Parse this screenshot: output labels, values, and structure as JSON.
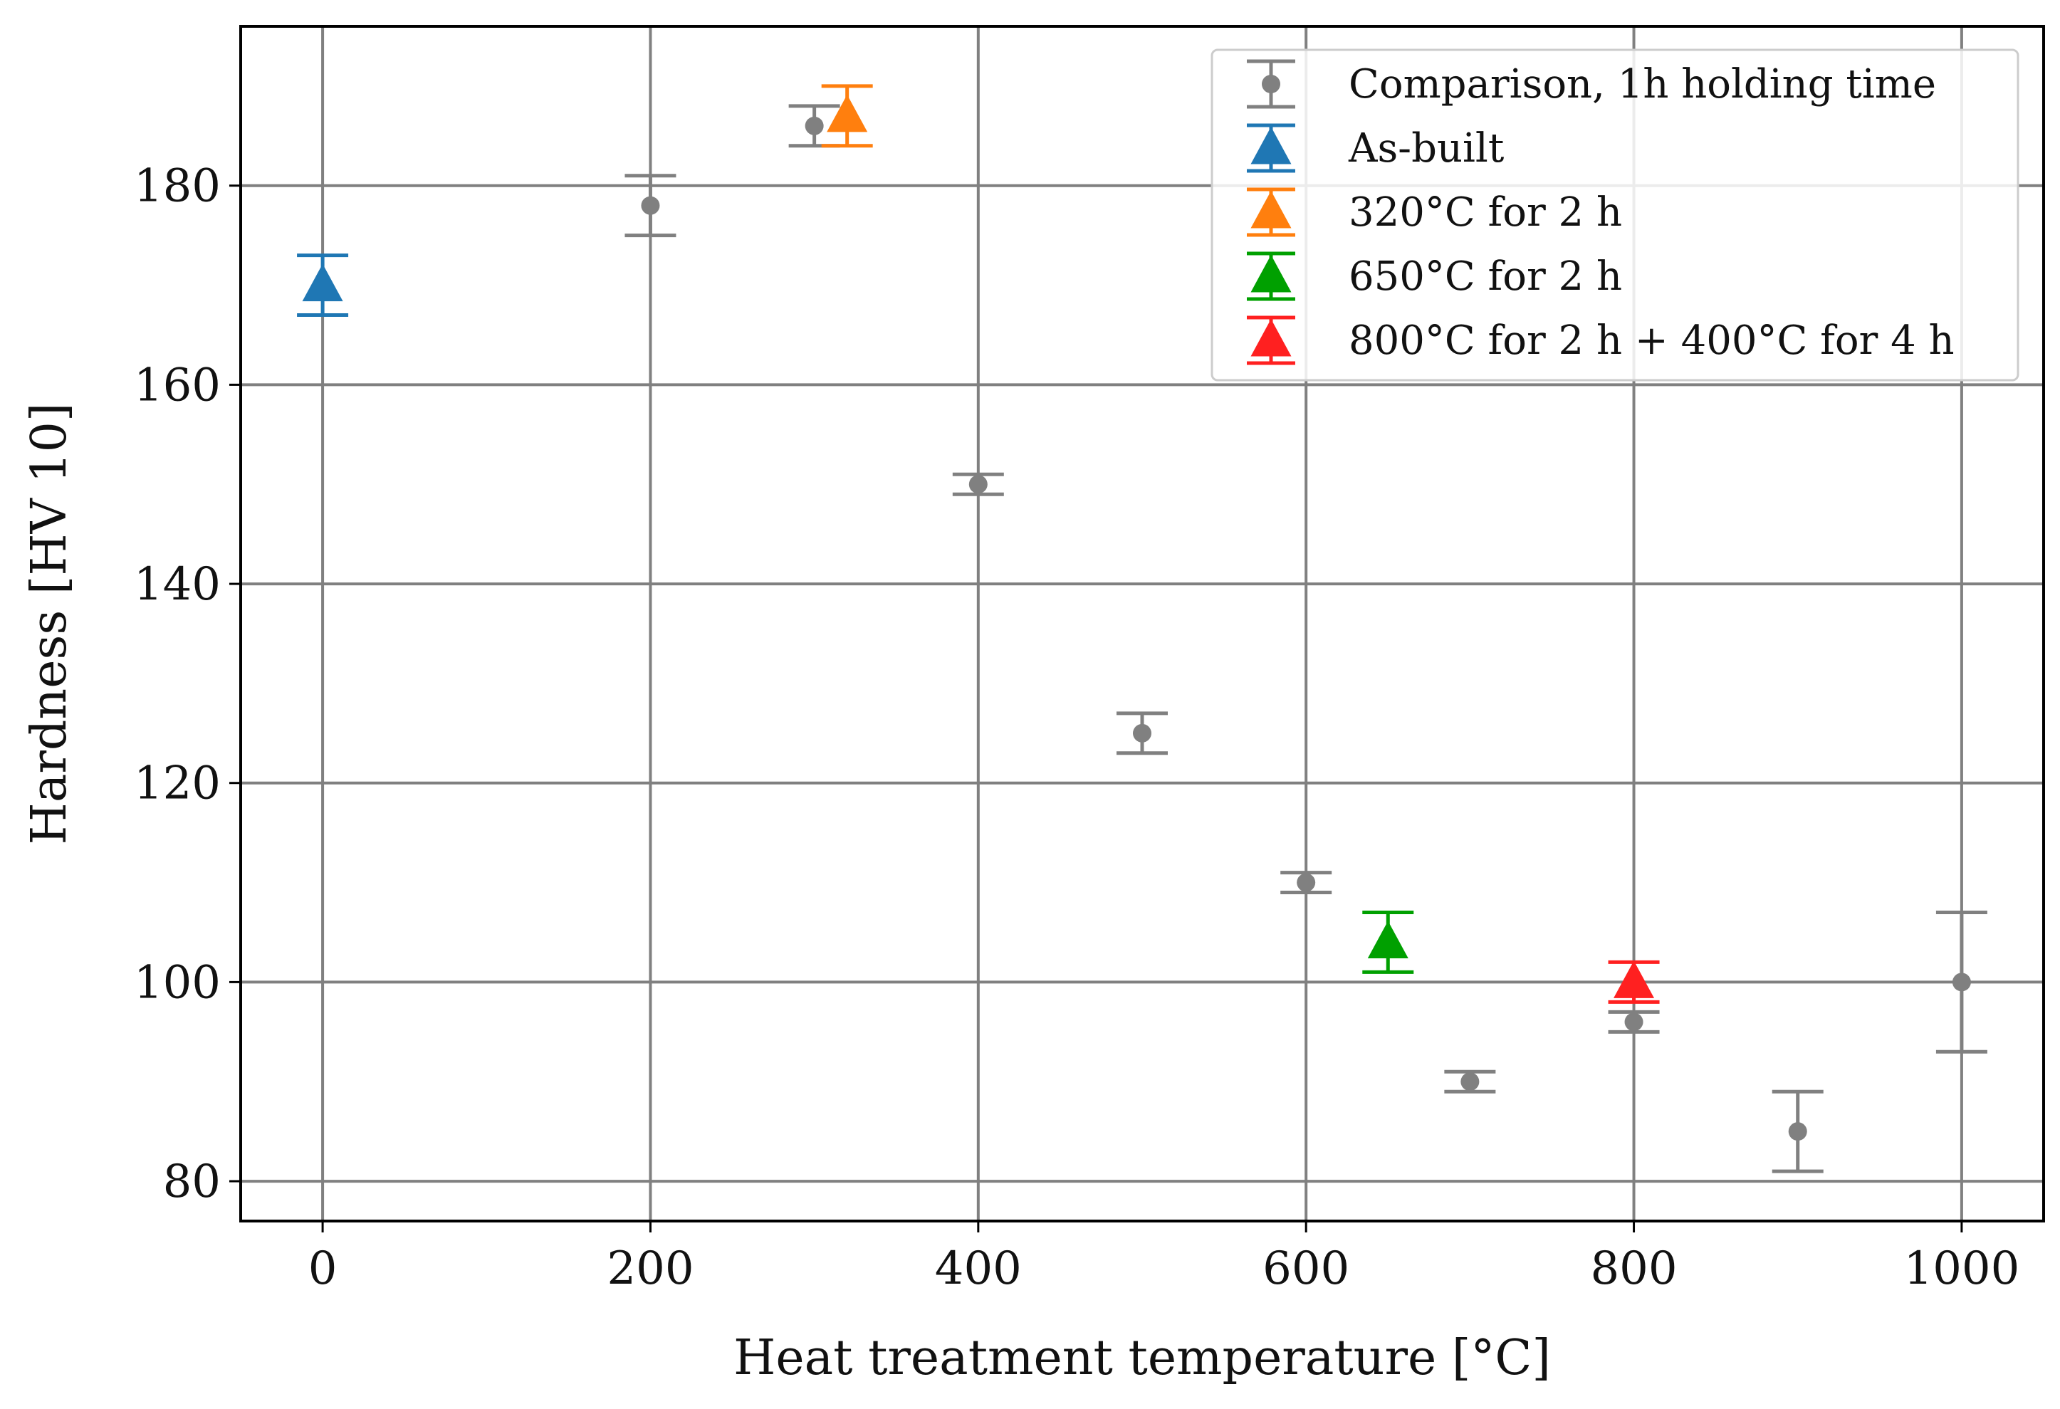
{
  "chart_data": {
    "type": "scatter",
    "title": "",
    "xlabel": "Heat treatment temperature [°C]",
    "ylabel": "Hardness [HV 10]",
    "xlim": [
      -50,
      1050
    ],
    "ylim": [
      76,
      196
    ],
    "x_ticks": [
      0,
      200,
      400,
      600,
      800,
      1000
    ],
    "x_tick_labels": [
      "0",
      "200",
      "400",
      "600",
      "800",
      "1000"
    ],
    "y_ticks": [
      80,
      100,
      120,
      140,
      160,
      180
    ],
    "y_tick_labels": [
      "80",
      "100",
      "120",
      "140",
      "160",
      "180"
    ],
    "grid": true,
    "legend_position": "top-right",
    "series": [
      {
        "name": "Comparison, 1h holding time",
        "color": "#808080",
        "marker": "circle",
        "points": [
          {
            "x": 200,
            "y": 178,
            "low": 175,
            "high": 181
          },
          {
            "x": 300,
            "y": 186,
            "low": 184,
            "high": 188
          },
          {
            "x": 400,
            "y": 150,
            "low": 149,
            "high": 151
          },
          {
            "x": 500,
            "y": 125,
            "low": 123,
            "high": 127
          },
          {
            "x": 600,
            "y": 110,
            "low": 109,
            "high": 111
          },
          {
            "x": 700,
            "y": 90,
            "low": 89,
            "high": 91
          },
          {
            "x": 800,
            "y": 96,
            "low": 95,
            "high": 97
          },
          {
            "x": 900,
            "y": 85,
            "low": 81,
            "high": 89
          },
          {
            "x": 1000,
            "y": 100,
            "low": 93,
            "high": 107
          }
        ]
      },
      {
        "name": "As-built",
        "color": "#1f77b4",
        "marker": "triangle",
        "points": [
          {
            "x": 0,
            "y": 170,
            "low": 167,
            "high": 173
          }
        ]
      },
      {
        "name": "320°C for 2 h",
        "color": "#ff7f0e",
        "marker": "triangle",
        "points": [
          {
            "x": 320,
            "y": 187,
            "low": 184,
            "high": 190
          }
        ]
      },
      {
        "name": "650°C for 2 h",
        "color": "#00a000",
        "marker": "triangle",
        "points": [
          {
            "x": 650,
            "y": 104,
            "low": 101,
            "high": 107
          }
        ]
      },
      {
        "name": "800°C for 2 h + 400°C for 4 h",
        "color": "#ff2020",
        "marker": "triangle",
        "points": [
          {
            "x": 800,
            "y": 100,
            "low": 98,
            "high": 102
          }
        ]
      }
    ]
  }
}
